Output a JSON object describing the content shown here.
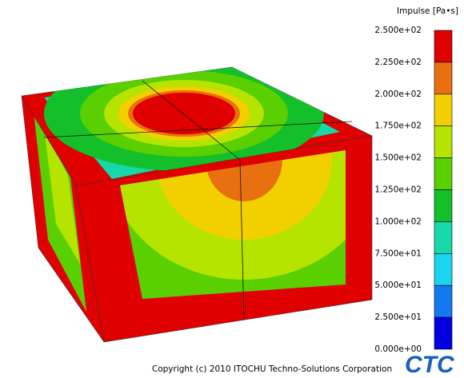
{
  "legend": {
    "title": "Impulse [Pa•s]",
    "ticks": [
      "2.500e+02",
      "2.250e+02",
      "2.000e+02",
      "1.750e+02",
      "1.500e+02",
      "1.250e+02",
      "1.000e+02",
      "7.500e+01",
      "5.000e+01",
      "2.500e+01",
      "0.000e+00"
    ],
    "colors": [
      "#e00000",
      "#e87010",
      "#f2d000",
      "#b4e400",
      "#5ad000",
      "#14c02a",
      "#16d8a8",
      "#1ad4f0",
      "#1478f0",
      "#0000e0"
    ]
  },
  "footer": {
    "copyright": "Copyright (c) 2010 ITOCHU Techno-Solutions Corporation",
    "logo": "CTC"
  }
}
